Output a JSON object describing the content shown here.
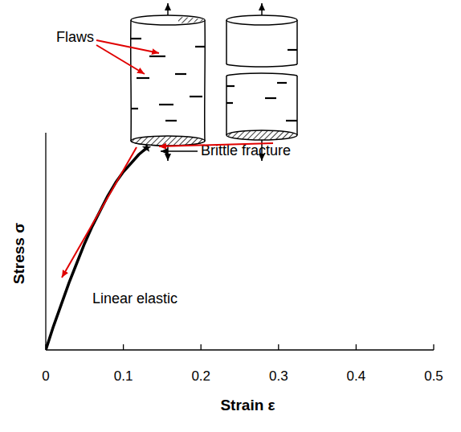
{
  "chart_data": {
    "type": "line",
    "x": [
      0,
      0.01,
      0.02,
      0.03,
      0.04,
      0.05,
      0.06,
      0.07,
      0.08,
      0.09,
      0.1,
      0.11,
      0.12,
      0.13
    ],
    "values": [
      0,
      0.11,
      0.21,
      0.31,
      0.4,
      0.49,
      0.57,
      0.64,
      0.71,
      0.77,
      0.82,
      0.86,
      0.9,
      0.93
    ],
    "color": "#000000",
    "xlim": [
      0,
      0.5
    ],
    "xticks": [
      0,
      0.1,
      0.2,
      0.3,
      0.4,
      0.5
    ],
    "ylim": [
      0,
      1
    ],
    "tick_labels": "x",
    "xlabel": "Strain  ε",
    "ylabel": "Stress  σ",
    "annotations": [
      "Flaws",
      "Brittle fracture",
      "Linear elastic"
    ]
  }
}
